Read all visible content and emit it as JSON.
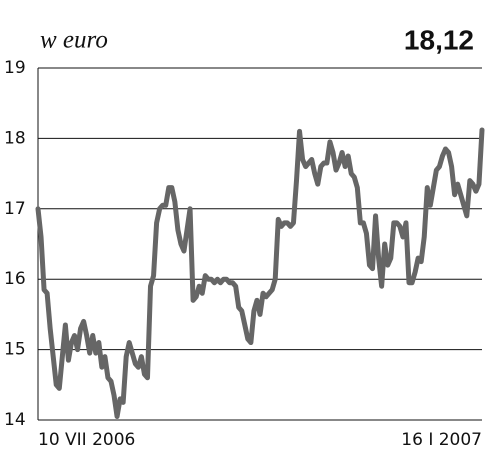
{
  "chart_data": {
    "type": "line",
    "title": "w euro",
    "annotation": "18,12",
    "categories": [
      "10 VII 2006",
      null,
      null,
      null,
      null,
      null,
      null,
      null,
      null,
      null,
      null,
      null,
      null,
      null,
      null,
      null,
      null,
      null,
      null,
      null,
      null,
      null,
      null,
      null,
      null,
      null,
      null,
      null,
      null,
      null,
      null,
      null,
      null,
      null,
      null,
      null,
      null,
      null,
      null,
      null,
      null,
      null,
      null,
      null,
      null,
      null,
      null,
      null,
      null,
      null,
      null,
      null,
      null,
      null,
      null,
      null,
      null,
      null,
      null,
      null,
      null,
      null,
      null,
      null,
      null,
      null,
      null,
      null,
      null,
      null,
      null,
      null,
      null,
      null,
      null,
      null,
      null,
      null,
      null,
      null,
      null,
      null,
      null,
      null,
      null,
      null,
      null,
      null,
      null,
      null,
      null,
      null,
      null,
      null,
      null,
      null,
      null,
      null,
      null,
      null,
      null,
      null,
      null,
      null,
      null,
      null,
      null,
      null,
      null,
      null,
      null,
      null,
      null,
      null,
      null,
      null,
      null,
      null,
      null,
      null,
      null,
      null,
      null,
      null,
      null,
      null,
      null,
      null,
      null,
      null,
      null,
      null,
      null,
      null,
      null,
      null,
      null,
      null,
      null,
      null,
      null,
      null,
      null,
      null,
      null,
      null,
      "16 I 2007"
    ],
    "values": [
      17.0,
      16.6,
      15.85,
      15.8,
      15.3,
      14.9,
      14.5,
      14.45,
      14.9,
      15.35,
      14.85,
      15.1,
      15.2,
      15.0,
      15.3,
      15.4,
      15.2,
      14.95,
      15.2,
      14.95,
      15.1,
      14.75,
      14.9,
      14.6,
      14.55,
      14.35,
      14.05,
      14.3,
      14.25,
      14.9,
      15.1,
      14.95,
      14.8,
      14.75,
      14.9,
      14.65,
      14.6,
      15.9,
      16.05,
      16.8,
      17.0,
      17.05,
      17.05,
      17.3,
      17.3,
      17.1,
      16.7,
      16.5,
      16.4,
      16.7,
      17.0,
      15.7,
      15.75,
      15.9,
      15.8,
      16.05,
      16.0,
      16.0,
      15.95,
      16.0,
      15.95,
      16.0,
      16.0,
      15.95,
      15.95,
      15.9,
      15.6,
      15.55,
      15.35,
      15.15,
      15.1,
      15.55,
      15.7,
      15.5,
      15.8,
      15.75,
      15.8,
      15.85,
      16.0,
      16.85,
      16.75,
      16.8,
      16.8,
      16.75,
      16.8,
      17.4,
      18.1,
      17.7,
      17.6,
      17.65,
      17.7,
      17.5,
      17.35,
      17.6,
      17.65,
      17.65,
      17.95,
      17.8,
      17.55,
      17.65,
      17.8,
      17.6,
      17.75,
      17.5,
      17.45,
      17.3,
      16.8,
      16.8,
      16.65,
      16.2,
      16.15,
      16.9,
      16.3,
      15.9,
      16.5,
      16.2,
      16.3,
      16.8,
      16.8,
      16.75,
      16.6,
      16.8,
      15.95,
      15.95,
      16.1,
      16.3,
      16.25,
      16.6,
      17.3,
      17.05,
      17.3,
      17.55,
      17.6,
      17.75,
      17.85,
      17.8,
      17.6,
      17.2,
      17.35,
      17.2,
      17.05,
      16.9,
      17.4,
      17.35,
      17.25,
      17.35,
      18.12
    ],
    "color": "#666666",
    "ylim": [
      14,
      19
    ],
    "yticks": [
      14,
      15,
      16,
      17,
      18,
      19
    ],
    "grid": true
  }
}
